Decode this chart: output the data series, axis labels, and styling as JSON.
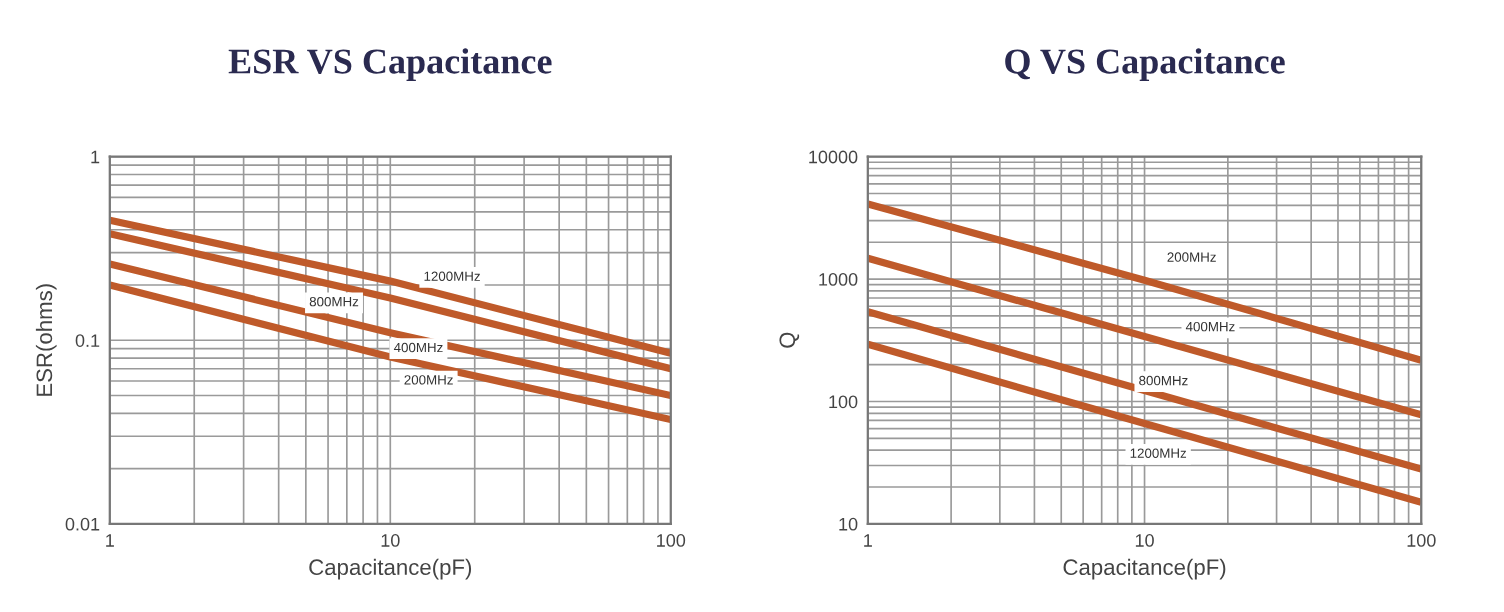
{
  "chart_data": [
    {
      "type": "line",
      "title": "ESR VS Capacitance",
      "xlabel": "Capacitance(pF)",
      "ylabel": "ESR(ohms)",
      "log": "xy",
      "x": [
        1,
        10,
        100
      ],
      "xlim": [
        1,
        100
      ],
      "xticks": [
        1,
        10,
        100
      ],
      "ylim": [
        0.01,
        1
      ],
      "yticks": [
        0.01,
        0.1,
        1
      ],
      "grid": true,
      "series": [
        {
          "color": "#bf5a2a",
          "values": [
            0.45,
            0.21,
            0.085
          ]
        },
        {
          "color": "#bf5a2a",
          "values": [
            0.38,
            0.17,
            0.07
          ]
        },
        {
          "color": "#bf5a2a",
          "values": [
            0.26,
            0.11,
            0.05
          ]
        },
        {
          "color": "#bf5a2a",
          "values": [
            0.2,
            0.081,
            0.037
          ]
        }
      ],
      "annotations": [
        {
          "text": "1200MHz",
          "x": 16.6,
          "y": 0.22
        },
        {
          "text": "800MHz",
          "x": 6.3,
          "y": 0.16
        },
        {
          "text": "400MHz",
          "x": 12.6,
          "y": 0.09
        },
        {
          "text": "200MHz",
          "x": 13.7,
          "y": 0.06
        }
      ]
    },
    {
      "type": "line",
      "title": "Q VS Capacitance",
      "xlabel": "Capacitance(pF)",
      "ylabel": "Q",
      "log": "xy",
      "x": [
        1,
        10,
        100
      ],
      "xlim": [
        1,
        100
      ],
      "xticks": [
        1,
        10,
        100
      ],
      "ylim": [
        10,
        10000
      ],
      "yticks": [
        10,
        100,
        1000,
        10000
      ],
      "grid": true,
      "series": [
        {
          "color": "#bf5a2a",
          "values": [
            4100,
            980,
            217
          ]
        },
        {
          "color": "#bf5a2a",
          "values": [
            1480,
            340,
            78
          ]
        },
        {
          "color": "#bf5a2a",
          "values": [
            540,
            123,
            28
          ]
        },
        {
          "color": "#bf5a2a",
          "values": [
            293,
            66,
            15
          ]
        }
      ],
      "annotations": [
        {
          "text": "200MHz",
          "x": 14.8,
          "y": 1480
        },
        {
          "text": "400MHz",
          "x": 17.3,
          "y": 400
        },
        {
          "text": "800MHz",
          "x": 11.7,
          "y": 145
        },
        {
          "text": "1200MHz",
          "x": 11.2,
          "y": 37
        }
      ]
    }
  ]
}
